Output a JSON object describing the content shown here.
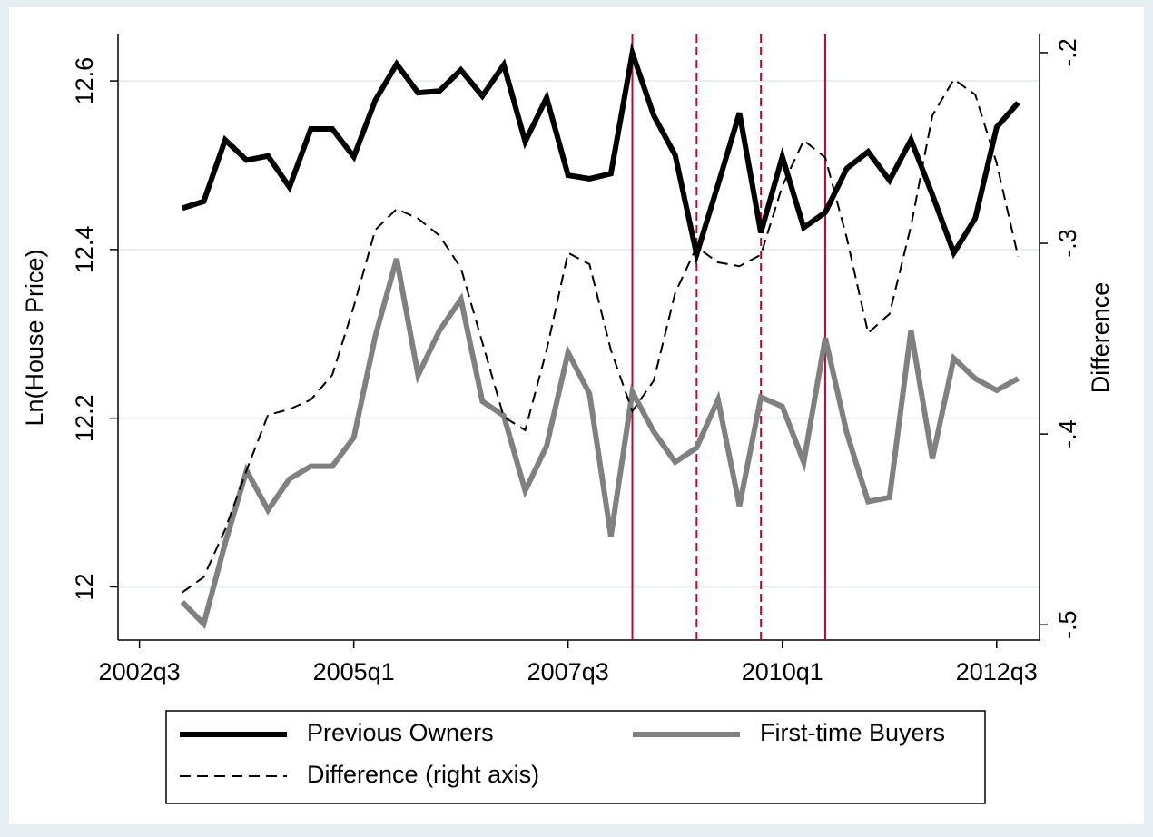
{
  "chart_data": {
    "type": "line",
    "x": [
      "2003q1",
      "2003q2",
      "2003q3",
      "2003q4",
      "2004q1",
      "2004q2",
      "2004q3",
      "2004q4",
      "2005q1",
      "2005q2",
      "2005q3",
      "2005q4",
      "2006q1",
      "2006q2",
      "2006q3",
      "2006q4",
      "2007q1",
      "2007q2",
      "2007q3",
      "2007q4",
      "2008q1",
      "2008q2",
      "2008q3",
      "2008q4",
      "2009q1",
      "2009q2",
      "2009q3",
      "2009q4",
      "2010q1",
      "2010q2",
      "2010q3",
      "2010q4",
      "2011q1",
      "2011q2",
      "2011q3",
      "2011q4",
      "2012q1",
      "2012q2",
      "2012q3",
      "2012q4"
    ],
    "series": [
      {
        "name": "Previous Owners",
        "color": "#000000",
        "style": "solid",
        "width": 6,
        "axis": "y",
        "values": [
          12.449,
          12.457,
          12.53,
          12.506,
          12.511,
          12.474,
          12.543,
          12.543,
          12.51,
          12.577,
          12.62,
          12.586,
          12.588,
          12.613,
          12.582,
          12.619,
          12.528,
          12.58,
          12.488,
          12.484,
          12.49,
          12.633,
          12.559,
          12.512,
          12.394,
          12.477,
          12.562,
          12.42,
          12.51,
          12.426,
          12.444,
          12.496,
          12.516,
          12.482,
          12.53,
          12.465,
          12.396,
          12.437,
          12.545,
          12.574
        ]
      },
      {
        "name": "First-time Buyers",
        "color": "#808080",
        "style": "solid",
        "width": 6,
        "axis": "y",
        "values": [
          11.982,
          11.956,
          12.052,
          12.138,
          12.091,
          12.128,
          12.143,
          12.143,
          12.177,
          12.297,
          12.389,
          12.251,
          12.304,
          12.341,
          12.22,
          12.203,
          12.114,
          12.167,
          12.278,
          12.229,
          12.06,
          12.231,
          12.184,
          12.148,
          12.165,
          12.222,
          12.096,
          12.225,
          12.214,
          12.148,
          12.295,
          12.183,
          12.101,
          12.106,
          12.304,
          12.152,
          12.271,
          12.247,
          12.233,
          12.247
        ]
      },
      {
        "name": "Difference (right axis)",
        "color": "#000000",
        "style": "dashed",
        "width": 2,
        "axis": "y2",
        "values": [
          -0.483,
          -0.475,
          -0.45,
          -0.419,
          -0.39,
          -0.387,
          -0.382,
          -0.369,
          -0.333,
          -0.293,
          -0.282,
          -0.287,
          -0.296,
          -0.313,
          -0.352,
          -0.391,
          -0.398,
          -0.356,
          -0.305,
          -0.311,
          -0.356,
          -0.388,
          -0.372,
          -0.326,
          -0.302,
          -0.31,
          -0.312,
          -0.306,
          -0.27,
          -0.246,
          -0.255,
          -0.297,
          -0.347,
          -0.337,
          -0.291,
          -0.233,
          -0.214,
          -0.222,
          -0.258,
          -0.307
        ]
      }
    ],
    "xlim": [
      "2002q2",
      "2013q1"
    ],
    "xticks": [
      "2002q3",
      "2005q1",
      "2007q3",
      "2010q1",
      "2012q3"
    ],
    "ylim": [
      11.937,
      12.655
    ],
    "yticks": [
      12,
      12.2,
      12.4,
      12.6
    ],
    "y2lim": [
      -0.508,
      -0.1905
    ],
    "y2ticks": [
      {
        "value": -0.5,
        "label": "-.5"
      },
      {
        "value": -0.4,
        "label": "-.4"
      },
      {
        "value": -0.3,
        "label": "-.3"
      },
      {
        "value": -0.2,
        "label": "-.2"
      }
    ],
    "ylabel": "Ln(House Price)",
    "y2label": "Difference",
    "grid": true,
    "vlines": [
      {
        "x": "2008q2",
        "style": "solid"
      },
      {
        "x": "2009q1",
        "style": "dashed"
      },
      {
        "x": "2009q4",
        "style": "dashed"
      },
      {
        "x": "2010q3",
        "style": "solid"
      }
    ],
    "vline_color": "#c10534",
    "legend": "bottom"
  }
}
